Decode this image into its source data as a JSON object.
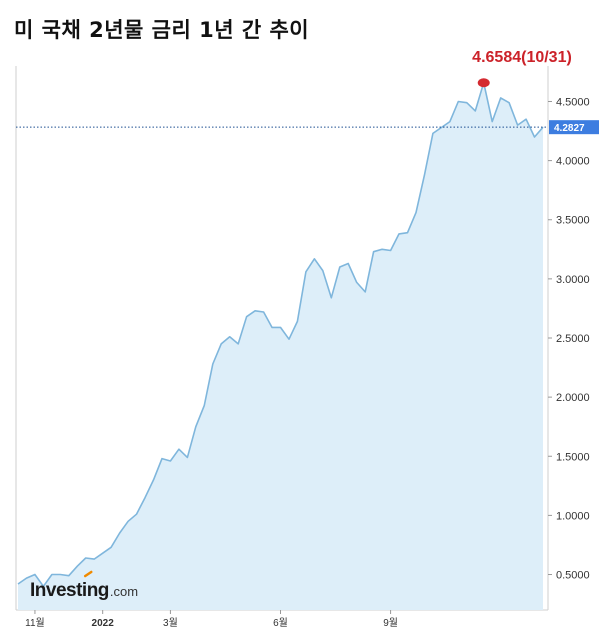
{
  "title": "미 국채 2년물 금리 1년 간 추이",
  "chart_data": {
    "type": "area",
    "ylim": [
      0.2,
      4.8
    ],
    "y_ticks": [
      "0.5000",
      "1.0000",
      "1.5000",
      "2.0000",
      "2.5000",
      "3.0000",
      "3.5000",
      "4.0000",
      "4.5000"
    ],
    "x_tick_labels": [
      {
        "label": "11월",
        "index": 2,
        "year": false
      },
      {
        "label": "2022",
        "index": 10,
        "year": true
      },
      {
        "label": "3월",
        "index": 18,
        "year": false
      },
      {
        "label": "6월",
        "index": 31,
        "year": false
      },
      {
        "label": "9월",
        "index": 44,
        "year": false
      }
    ],
    "values": [
      0.42,
      0.47,
      0.5,
      0.4,
      0.5,
      0.5,
      0.49,
      0.57,
      0.64,
      0.63,
      0.68,
      0.73,
      0.85,
      0.95,
      1.01,
      1.15,
      1.3,
      1.48,
      1.46,
      1.56,
      1.49,
      1.75,
      1.93,
      2.28,
      2.45,
      2.51,
      2.45,
      2.68,
      2.73,
      2.72,
      2.59,
      2.59,
      2.49,
      2.64,
      3.06,
      3.17,
      3.07,
      2.84,
      3.1,
      3.13,
      2.97,
      2.89,
      3.23,
      3.25,
      3.24,
      3.38,
      3.39,
      3.56,
      3.88,
      4.23,
      4.28,
      4.33,
      4.5,
      4.49,
      4.42,
      4.6584,
      4.33,
      4.53,
      4.49,
      4.3,
      4.35,
      4.2,
      4.2827
    ],
    "current": {
      "value": 4.2827,
      "label": "4.2827"
    },
    "peak": {
      "value": 4.6584,
      "index": 55,
      "label": "4.6584(10/31)"
    },
    "colors": {
      "line": "#7fb6dc",
      "fill": "#ddeef9",
      "peak_marker": "#d42a30",
      "peak_text": "#cc2229",
      "current_tag": "#3d7de0",
      "axis": "#cfcfcf"
    },
    "grid": false,
    "watermark": {
      "main": "Investing",
      "suffix": ".com"
    }
  }
}
